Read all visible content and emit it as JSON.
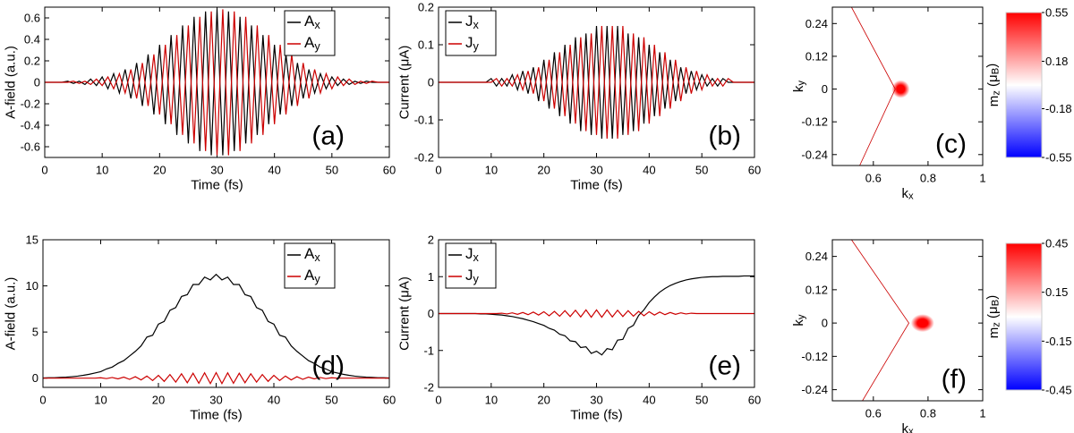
{
  "chart_data": [
    {
      "type": "line",
      "panel_label": "(a)",
      "xlabel": "Time (fs)",
      "ylabel": "A-field (a.u.)",
      "legend": "upper right",
      "xlim": [
        0,
        60
      ],
      "xticks": [
        0,
        10,
        20,
        30,
        40,
        50,
        60
      ],
      "ylim": [
        -0.7,
        0.7
      ],
      "yticks": [
        -0.6,
        -0.4,
        -0.2,
        0,
        0.2,
        0.4,
        0.6
      ],
      "x": [
        0,
        1,
        2,
        3,
        4,
        5,
        6,
        7,
        8,
        9,
        10,
        11,
        12,
        13,
        14,
        15,
        16,
        17,
        18,
        19,
        20,
        21,
        22,
        23,
        24,
        25,
        26,
        27,
        28,
        29,
        30,
        31,
        32,
        33,
        34,
        35,
        36,
        37,
        38,
        39,
        40,
        41,
        42,
        43,
        44,
        45,
        46,
        47,
        48,
        49,
        50,
        51,
        52,
        53,
        54,
        55,
        56,
        57,
        58,
        59,
        60
      ],
      "series": [
        {
          "name": "Ax",
          "color": "#000000",
          "values": [
            0,
            0,
            0,
            0,
            0.01,
            -0.01,
            0.01,
            -0.02,
            0.03,
            -0.03,
            0.05,
            -0.06,
            0.08,
            -0.1,
            0.12,
            -0.15,
            0.18,
            -0.22,
            0.26,
            -0.3,
            0.35,
            -0.39,
            0.44,
            -0.49,
            0.53,
            -0.57,
            0.61,
            -0.64,
            0.66,
            -0.68,
            0.68,
            -0.68,
            0.66,
            -0.64,
            0.61,
            -0.57,
            0.53,
            -0.49,
            0.44,
            -0.39,
            0.35,
            -0.3,
            0.26,
            -0.22,
            0.18,
            -0.15,
            0.12,
            -0.1,
            0.08,
            -0.06,
            0.05,
            -0.03,
            0.03,
            -0.02,
            0.01,
            -0.01,
            0.01,
            0,
            0,
            0,
            0
          ]
        },
        {
          "name": "Ay",
          "color": "#cc0000",
          "values": [
            0,
            0,
            0,
            0,
            0,
            0.01,
            -0.01,
            0.01,
            -0.02,
            0.03,
            -0.03,
            0.05,
            -0.06,
            0.08,
            -0.1,
            0.12,
            -0.15,
            0.18,
            -0.22,
            0.26,
            -0.3,
            0.35,
            -0.39,
            0.44,
            -0.49,
            0.53,
            -0.57,
            0.61,
            -0.64,
            0.66,
            -0.68,
            0.68,
            -0.68,
            0.66,
            -0.64,
            0.61,
            -0.57,
            0.53,
            -0.49,
            0.44,
            -0.39,
            0.35,
            -0.3,
            0.26,
            -0.22,
            0.18,
            -0.15,
            0.12,
            -0.1,
            0.08,
            -0.06,
            0.05,
            -0.03,
            0.03,
            -0.02,
            0.01,
            -0.01,
            0.01,
            0,
            0,
            0
          ]
        }
      ]
    },
    {
      "type": "line",
      "panel_label": "(b)",
      "xlabel": "Time (fs)",
      "ylabel": "Current (μA)",
      "legend": "upper left",
      "xlim": [
        0,
        60
      ],
      "xticks": [
        0,
        10,
        20,
        30,
        40,
        50,
        60
      ],
      "ylim": [
        -0.2,
        0.2
      ],
      "yticks": [
        -0.2,
        -0.1,
        0,
        0.1,
        0.2
      ],
      "x": [
        0,
        1,
        2,
        3,
        4,
        5,
        6,
        7,
        8,
        9,
        10,
        11,
        12,
        13,
        14,
        15,
        16,
        17,
        18,
        19,
        20,
        21,
        22,
        23,
        24,
        25,
        26,
        27,
        28,
        29,
        30,
        31,
        32,
        33,
        34,
        35,
        36,
        37,
        38,
        39,
        40,
        41,
        42,
        43,
        44,
        45,
        46,
        47,
        48,
        49,
        50,
        51,
        52,
        53,
        54,
        55,
        56,
        57,
        58,
        59,
        60
      ],
      "series": [
        {
          "name": "Jx",
          "color": "#000000",
          "values": [
            0,
            0,
            0,
            0,
            0,
            0,
            0,
            0,
            0,
            0,
            0.01,
            -0.01,
            0.01,
            -0.01,
            0.02,
            -0.02,
            0.03,
            -0.03,
            0.04,
            -0.05,
            0.06,
            -0.07,
            0.08,
            -0.09,
            0.1,
            -0.11,
            0.12,
            -0.13,
            0.13,
            -0.14,
            0.15,
            -0.15,
            0.15,
            -0.15,
            0.15,
            -0.14,
            0.13,
            -0.13,
            0.12,
            -0.11,
            0.1,
            -0.09,
            0.08,
            -0.07,
            0.06,
            -0.05,
            0.04,
            -0.03,
            0.03,
            -0.02,
            0.02,
            -0.01,
            0.01,
            -0.01,
            0.01,
            0,
            0,
            0,
            0,
            0,
            0
          ]
        },
        {
          "name": "Jy",
          "color": "#cc0000",
          "values": [
            0,
            0,
            0,
            0,
            0,
            0,
            0,
            0,
            0,
            0,
            0,
            0.01,
            -0.01,
            0.01,
            -0.01,
            0.02,
            -0.02,
            0.03,
            -0.03,
            0.04,
            -0.05,
            0.06,
            -0.07,
            0.08,
            -0.09,
            0.1,
            -0.11,
            0.12,
            -0.13,
            0.13,
            -0.14,
            0.15,
            -0.15,
            0.15,
            -0.15,
            0.15,
            -0.14,
            0.13,
            -0.13,
            0.12,
            -0.11,
            0.1,
            -0.09,
            0.08,
            -0.07,
            0.06,
            -0.05,
            0.04,
            -0.03,
            0.03,
            -0.02,
            0.02,
            -0.01,
            0.01,
            -0.01,
            0.01,
            0,
            0,
            0,
            0,
            0
          ]
        }
      ]
    },
    {
      "type": "heatmap",
      "panel_label": "(c)",
      "xlabel": "kx",
      "ylabel": "ky",
      "xlim": [
        0.45,
        1
      ],
      "xticks": [
        0.6,
        0.8,
        1
      ],
      "ylim": [
        -0.28,
        0.3
      ],
      "yticks": [
        -0.24,
        -0.12,
        0,
        0.12,
        0.24
      ],
      "guide": {
        "color": "#cc0000",
        "x": [
          0.52,
          0.68,
          0.55
        ],
        "y": [
          0.3,
          0,
          -0.28
        ]
      },
      "spot": {
        "x": 0.7,
        "y": 0,
        "value": 0.55
      },
      "colorbar": {
        "label": "mz (μB)",
        "zlim": [
          -0.55,
          0.55
        ],
        "ticks": [
          -0.55,
          -0.18,
          0.18,
          0.55
        ]
      }
    },
    {
      "type": "line",
      "panel_label": "(d)",
      "xlabel": "Time (fs)",
      "ylabel": "A-field (a.u.)",
      "legend": "upper right",
      "xlim": [
        0,
        60
      ],
      "xticks": [
        0,
        10,
        20,
        30,
        40,
        50,
        60
      ],
      "ylim": [
        -1,
        15
      ],
      "yticks": [
        0,
        5,
        10,
        15
      ],
      "x": [
        0,
        1,
        2,
        3,
        4,
        5,
        6,
        7,
        8,
        9,
        10,
        11,
        12,
        13,
        14,
        15,
        16,
        17,
        18,
        19,
        20,
        21,
        22,
        23,
        24,
        25,
        26,
        27,
        28,
        29,
        30,
        31,
        32,
        33,
        34,
        35,
        36,
        37,
        38,
        39,
        40,
        41,
        42,
        43,
        44,
        45,
        46,
        47,
        48,
        49,
        50,
        51,
        52,
        53,
        54,
        55,
        56,
        57,
        58,
        59,
        60
      ],
      "series": [
        {
          "name": "Ax",
          "color": "#000000",
          "values": [
            0.02,
            0.04,
            0.05,
            0.08,
            0.11,
            0.16,
            0.22,
            0.31,
            0.42,
            0.56,
            0.7,
            1.0,
            1.2,
            1.6,
            1.9,
            2.4,
            2.9,
            3.5,
            4.45,
            4.65,
            5.85,
            6.15,
            7.35,
            7.65,
            8.85,
            9.05,
            10.15,
            10.15,
            10.95,
            10.65,
            11.25,
            10.65,
            10.95,
            10.15,
            10.15,
            9.05,
            8.85,
            7.65,
            7.35,
            6.15,
            5.85,
            4.65,
            4.45,
            3.5,
            2.9,
            2.4,
            1.9,
            1.6,
            1.2,
            1.0,
            0.7,
            0.56,
            0.42,
            0.31,
            0.22,
            0.16,
            0.11,
            0.08,
            0.05,
            0.04,
            0.02
          ]
        },
        {
          "name": "Ay",
          "color": "#cc0000",
          "values": [
            0,
            0,
            0,
            0,
            0,
            0,
            0,
            0,
            0,
            0,
            0.04,
            -0.05,
            0.07,
            -0.08,
            0.11,
            -0.13,
            0.16,
            -0.19,
            0.23,
            -0.26,
            0.3,
            -0.35,
            0.39,
            -0.43,
            0.47,
            -0.5,
            0.53,
            -0.56,
            0.58,
            -0.59,
            0.6,
            -0.59,
            0.58,
            -0.56,
            0.53,
            -0.5,
            0.47,
            -0.43,
            0.39,
            -0.35,
            0.3,
            -0.26,
            0.23,
            -0.19,
            0.16,
            -0.13,
            0.11,
            -0.08,
            0.07,
            -0.05,
            0.04,
            0,
            0,
            0,
            0,
            0,
            0,
            0,
            0,
            0,
            0
          ]
        }
      ]
    },
    {
      "type": "line",
      "panel_label": "(e)",
      "xlabel": "Time (fs)",
      "ylabel": "Current (μA)",
      "legend": "upper left",
      "xlim": [
        0,
        60
      ],
      "xticks": [
        0,
        10,
        20,
        30,
        40,
        50,
        60
      ],
      "ylim": [
        -2,
        2
      ],
      "yticks": [
        -2,
        -1,
        0,
        1,
        2
      ],
      "x": [
        0,
        1,
        2,
        3,
        4,
        5,
        6,
        7,
        8,
        9,
        10,
        11,
        12,
        13,
        14,
        15,
        16,
        17,
        18,
        19,
        20,
        21,
        22,
        23,
        24,
        25,
        26,
        27,
        28,
        29,
        30,
        31,
        32,
        33,
        34,
        35,
        36,
        37,
        38,
        39,
        40,
        41,
        42,
        43,
        44,
        45,
        46,
        47,
        48,
        49,
        50,
        51,
        52,
        53,
        54,
        55,
        56,
        57,
        58,
        59,
        60
      ],
      "series": [
        {
          "name": "Jx",
          "color": "#000000",
          "values": [
            0,
            0,
            0,
            0,
            0,
            0,
            0,
            0,
            -0.01,
            -0.01,
            -0.02,
            -0.03,
            -0.04,
            -0.06,
            -0.08,
            -0.11,
            -0.14,
            -0.18,
            -0.22,
            -0.27,
            -0.32,
            -0.4,
            -0.45,
            -0.56,
            -0.6,
            -0.74,
            -0.76,
            -0.92,
            -0.9,
            -1.08,
            -1.02,
            -1.12,
            -0.95,
            -0.98,
            -0.72,
            -0.7,
            -0.4,
            -0.32,
            -0.05,
            0.1,
            0.3,
            0.45,
            0.58,
            0.68,
            0.76,
            0.82,
            0.87,
            0.91,
            0.94,
            0.96,
            0.98,
            0.99,
            1.0,
            1.0,
            1.01,
            1.01,
            1.01,
            1.01,
            1.02,
            1.02,
            1.02
          ]
        },
        {
          "name": "Jy",
          "color": "#cc0000",
          "values": [
            0,
            0,
            0,
            0,
            0,
            0,
            0,
            0,
            0,
            0,
            0,
            0,
            0.01,
            -0.01,
            0.02,
            -0.02,
            0.03,
            -0.03,
            0.04,
            -0.04,
            0.05,
            -0.06,
            0.06,
            -0.07,
            0.08,
            -0.08,
            0.09,
            -0.09,
            0.1,
            -0.1,
            0.1,
            -0.1,
            0.1,
            -0.09,
            0.09,
            -0.08,
            0.08,
            -0.07,
            0.06,
            -0.06,
            0.05,
            -0.04,
            0.04,
            -0.03,
            0.03,
            -0.02,
            0.02,
            -0.01,
            0.01,
            0,
            0,
            0,
            0,
            0,
            0,
            0,
            0,
            0,
            0,
            0,
            0
          ]
        }
      ]
    },
    {
      "type": "heatmap",
      "panel_label": "(f)",
      "xlabel": "kx",
      "ylabel": "ky",
      "xlim": [
        0.45,
        1
      ],
      "xticks": [
        0.6,
        0.8,
        1
      ],
      "ylim": [
        -0.28,
        0.3
      ],
      "yticks": [
        -0.24,
        -0.12,
        0,
        0.12,
        0.24
      ],
      "guide": {
        "color": "#cc0000",
        "x": [
          0.52,
          0.73,
          0.56
        ],
        "y": [
          0.3,
          0,
          -0.28
        ]
      },
      "spot": {
        "x": 0.78,
        "y": 0,
        "value": 0.45
      },
      "colorbar": {
        "label": "mz (μB)",
        "zlim": [
          -0.45,
          0.45
        ],
        "ticks": [
          -0.45,
          -0.15,
          0.15,
          0.45
        ]
      }
    }
  ]
}
